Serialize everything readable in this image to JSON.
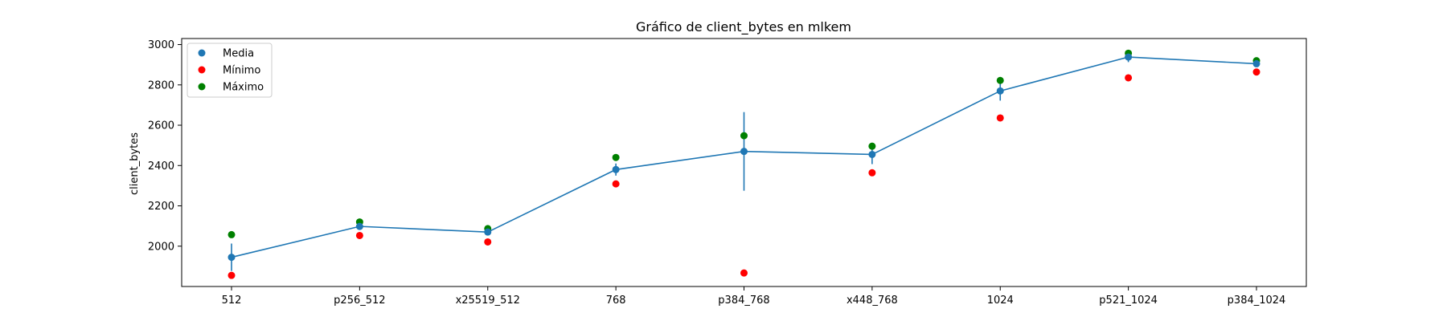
{
  "chart_data": {
    "type": "line",
    "title": "Gráfico de client_bytes en mlkem",
    "xlabel": "",
    "ylabel": "client_bytes",
    "categories": [
      "512",
      "p256_512",
      "x25519_512",
      "768",
      "p384_768",
      "x448_768",
      "1024",
      "p521_1024",
      "p384_1024"
    ],
    "ylim": [
      1800,
      3030
    ],
    "yticks": [
      2000,
      2200,
      2400,
      2600,
      2800,
      3000
    ],
    "grid": false,
    "legend_position": "top-left",
    "series": [
      {
        "name": "Media",
        "kind": "line-with-errorbars",
        "color": "#1f77b4",
        "values": [
          1945,
          2098,
          2070,
          2380,
          2470,
          2455,
          2770,
          2938,
          2905
        ],
        "error": [
          68,
          12,
          10,
          30,
          195,
          48,
          48,
          25,
          12
        ]
      },
      {
        "name": "Mínimo",
        "kind": "scatter",
        "color": "#ff0000",
        "values": [
          1855,
          2053,
          2021,
          2309,
          1867,
          2364,
          2636,
          2835,
          2864
        ]
      },
      {
        "name": "Máximo",
        "kind": "scatter",
        "color": "#008000",
        "values": [
          2057,
          2120,
          2087,
          2440,
          2548,
          2496,
          2822,
          2957,
          2920
        ]
      }
    ]
  }
}
